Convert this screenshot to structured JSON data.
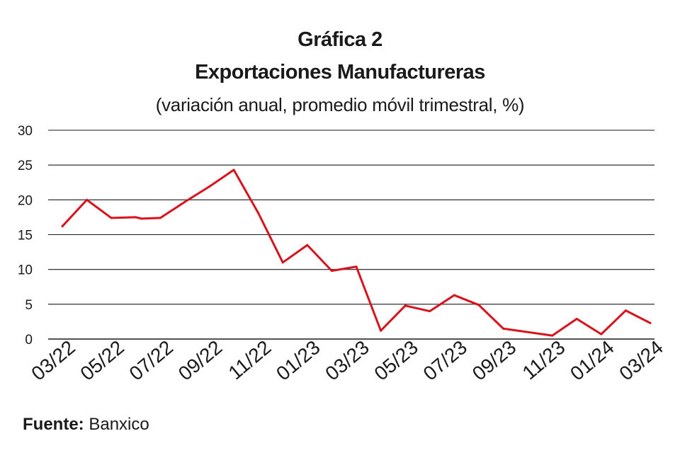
{
  "chart_data": {
    "type": "line",
    "title": "Gráfica 2",
    "subtitle": "Exportaciones Manufactureras",
    "ylabel": "(variación anual, promedio móvil trimestral, %)",
    "xlabel": "",
    "ylim": [
      0,
      30
    ],
    "yticks": [
      0,
      5,
      10,
      15,
      20,
      25,
      30
    ],
    "grid": true,
    "x_tick_labels": [
      "03/22",
      "05/22",
      "07/22",
      "09/22",
      "11/22",
      "01/23",
      "03/23",
      "05/23",
      "07/23",
      "09/23",
      "11/23",
      "01/24",
      "03/24"
    ],
    "series": [
      {
        "color": "#d7141d",
        "points": [
          {
            "x": "03/22",
            "y": 16.2
          },
          {
            "x": "04/22",
            "y": 20.0
          },
          {
            "x": "05/22",
            "y": 17.4
          },
          {
            "x": "06/22",
            "y": 17.5
          },
          {
            "x": "06/22",
            "y": 17.3
          },
          {
            "x": "07/22",
            "y": 17.4
          },
          {
            "x": "08/22",
            "y": 19.7
          },
          {
            "x": "09/22",
            "y": 21.9
          },
          {
            "x": "10/22",
            "y": 24.3
          },
          {
            "x": "11/22",
            "y": 18.1
          },
          {
            "x": "12/22",
            "y": 11.0
          },
          {
            "x": "01/23",
            "y": 13.5
          },
          {
            "x": "02/23",
            "y": 9.8
          },
          {
            "x": "03/23",
            "y": 10.4
          },
          {
            "x": "04/23",
            "y": 1.2
          },
          {
            "x": "05/23",
            "y": 4.8
          },
          {
            "x": "06/23",
            "y": 4.0
          },
          {
            "x": "07/23",
            "y": 6.3
          },
          {
            "x": "08/23",
            "y": 4.9
          },
          {
            "x": "09/23",
            "y": 1.5
          },
          {
            "x": "11/23",
            "y": 0.5
          },
          {
            "x": "12/23",
            "y": 2.9
          },
          {
            "x": "01/24",
            "y": 0.7
          },
          {
            "x": "02/24",
            "y": 4.1
          },
          {
            "x": "03/24",
            "y": 2.3
          }
        ]
      }
    ]
  },
  "source": {
    "label": "Fuente:",
    "value": "Banxico"
  }
}
